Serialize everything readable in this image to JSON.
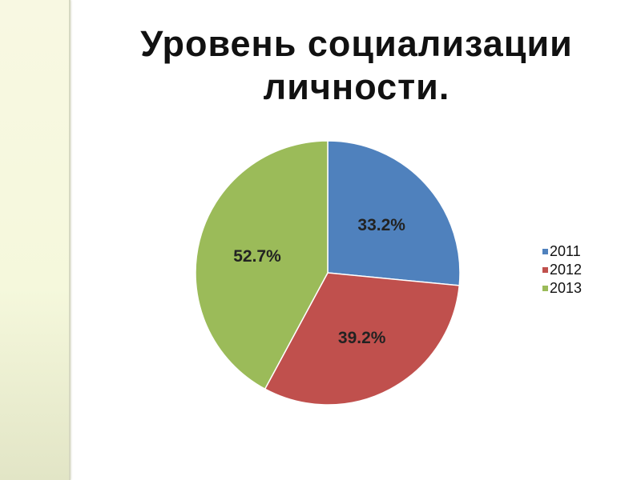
{
  "chart_data": {
    "type": "pie",
    "title": "Уровень социализации личности.",
    "categories": [
      "2011",
      "2012",
      "2013"
    ],
    "values": [
      33.2,
      39.2,
      52.7
    ],
    "labels": [
      "33.2%",
      "39.2%",
      "52.7%"
    ],
    "colors": [
      "#4f81bd",
      "#c0504d",
      "#9bbb59"
    ],
    "legend": "right"
  }
}
